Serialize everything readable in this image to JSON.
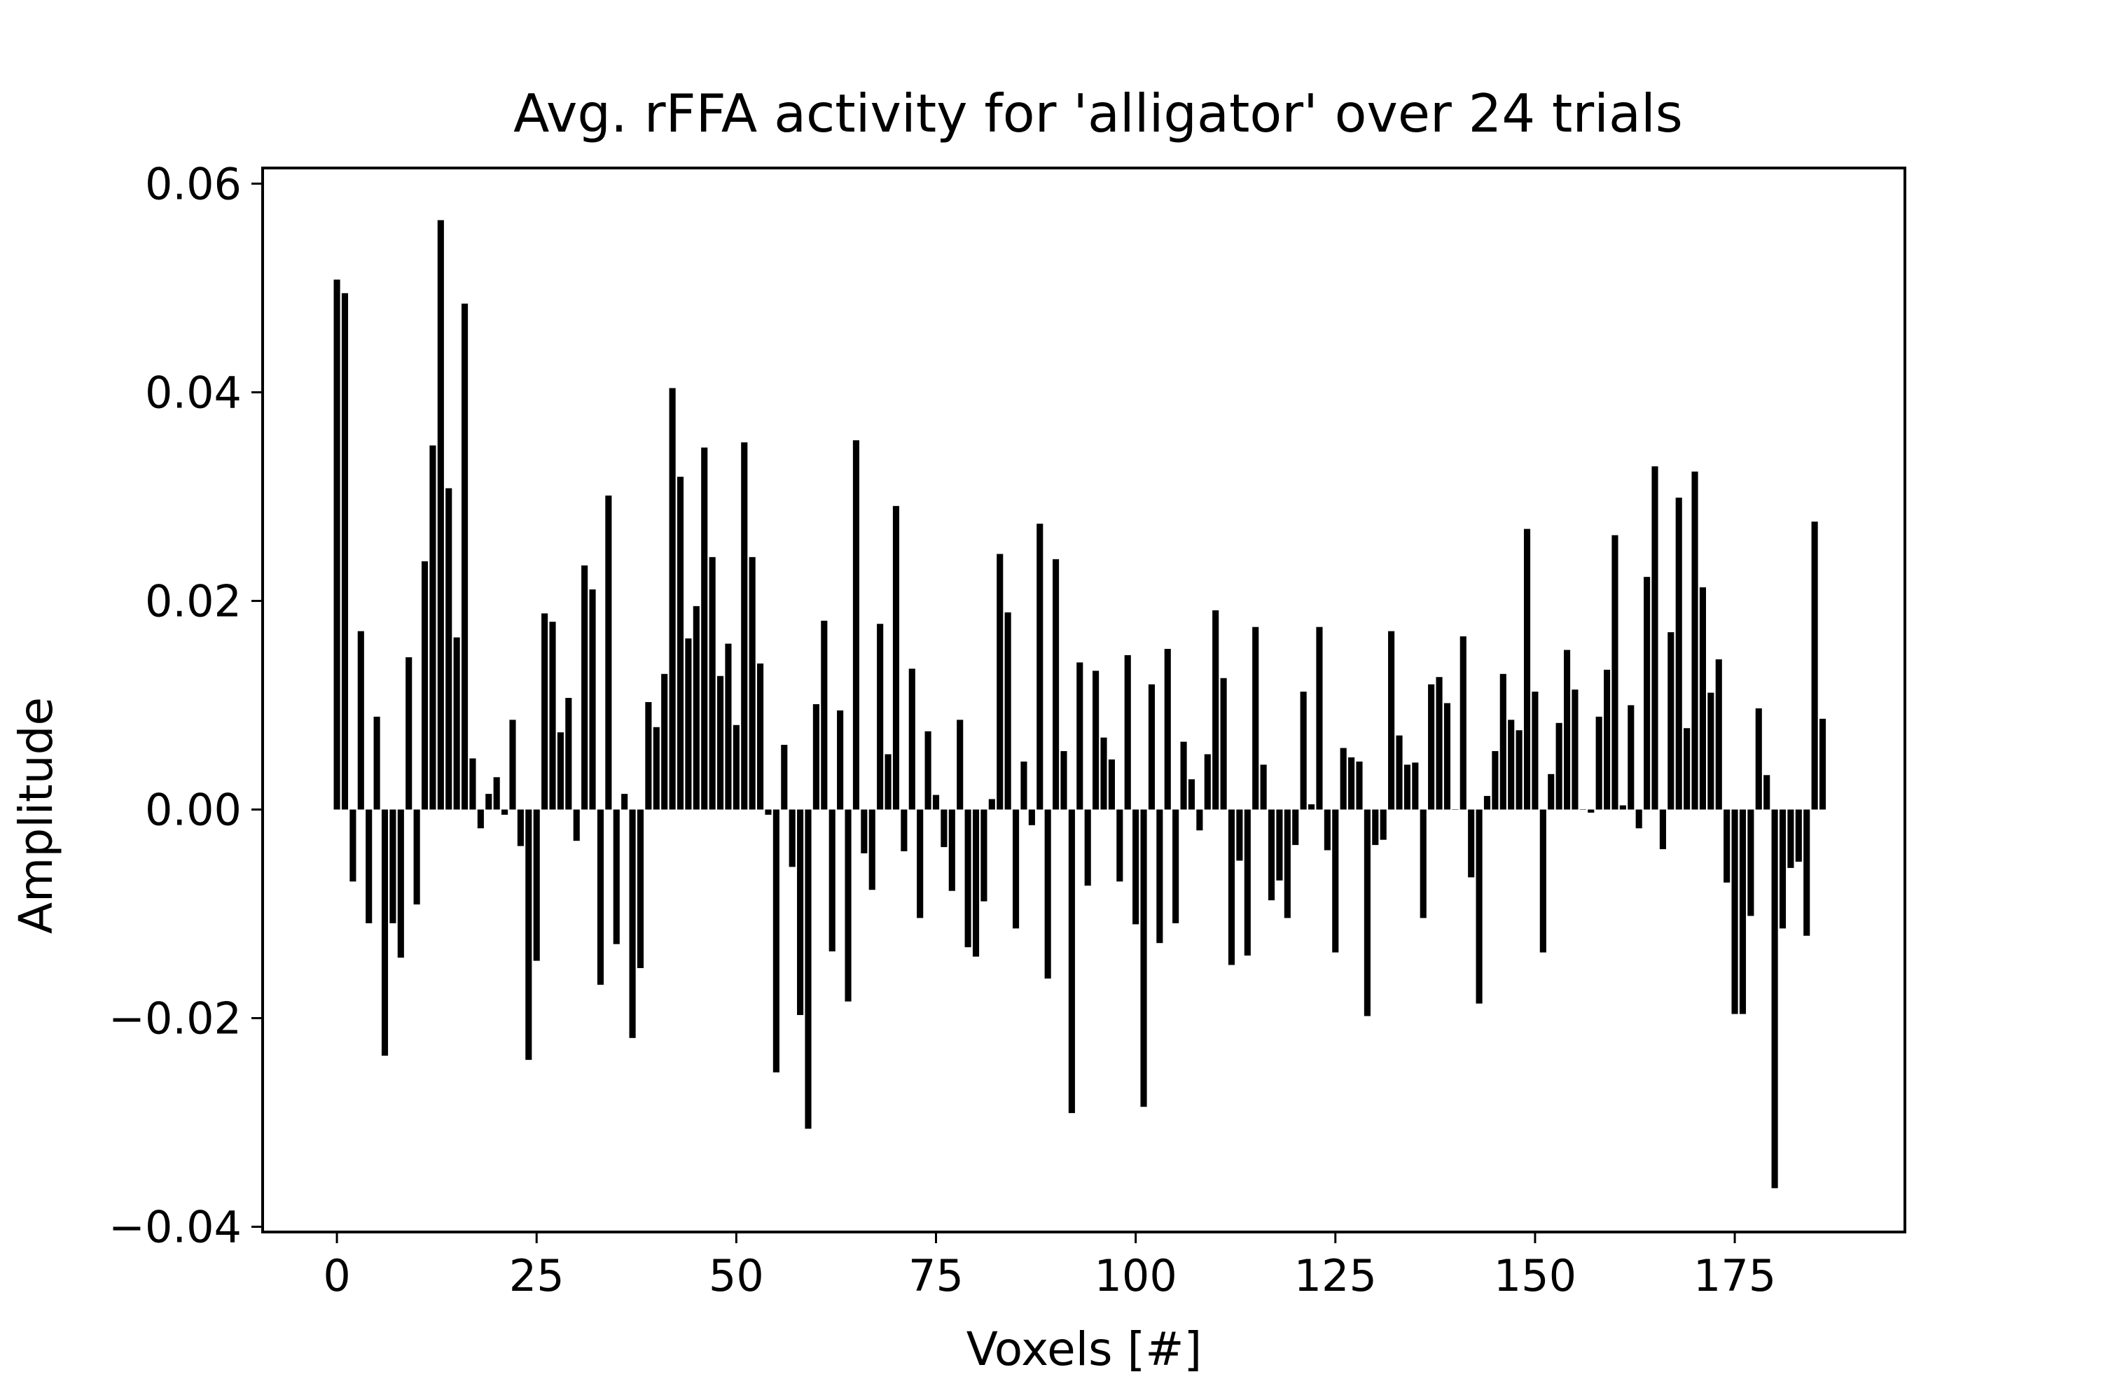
{
  "chart_data": {
    "type": "bar",
    "title": "Avg. rFFA activity for 'alligator' over 24 trials",
    "xlabel": "Voxels [#]",
    "ylabel": "Amplitude",
    "xlim": [
      -9.3,
      196.3
    ],
    "ylim": [
      -0.0405,
      0.0615
    ],
    "xticks": [
      0,
      25,
      50,
      75,
      100,
      125,
      150,
      175
    ],
    "xtick_labels": [
      "0",
      "25",
      "50",
      "75",
      "100",
      "125",
      "150",
      "175"
    ],
    "yticks": [
      -0.04,
      -0.02,
      0.0,
      0.02,
      0.04,
      0.06
    ],
    "ytick_labels": [
      "−0.04",
      "−0.02",
      "0.00",
      "0.02",
      "0.04",
      "0.06"
    ],
    "grid": false,
    "legend": null,
    "bar_color": "#000000",
    "series": [
      {
        "values": [
          0.0508,
          0.0495,
          -0.0069,
          0.0171,
          -0.0109,
          0.0089,
          -0.0236,
          -0.0109,
          -0.0142,
          0.0146,
          -0.0091,
          0.0238,
          0.0349,
          0.0565,
          0.0308,
          0.0165,
          0.0485,
          0.0049,
          -0.0018,
          0.0015,
          0.0031,
          -0.0005,
          0.0086,
          -0.0035,
          -0.024,
          -0.0145,
          0.0188,
          0.018,
          0.0074,
          0.0107,
          -0.003,
          0.0234,
          0.0211,
          -0.0168,
          0.0301,
          -0.0129,
          0.0015,
          -0.0219,
          -0.0152,
          0.0103,
          0.0079,
          0.013,
          0.0404,
          0.0319,
          0.0164,
          0.0195,
          0.0347,
          0.0242,
          0.0128,
          0.0159,
          0.0081,
          0.0352,
          0.0242,
          0.014,
          -0.0005,
          -0.0252,
          0.0062,
          -0.0055,
          -0.0197,
          -0.0306,
          0.0101,
          0.0181,
          -0.0136,
          0.0095,
          -0.0184,
          0.0354,
          -0.0042,
          -0.0077,
          0.0178,
          0.0053,
          0.0291,
          -0.004,
          0.0135,
          -0.0104,
          0.0075,
          0.0014,
          -0.0036,
          -0.0078,
          0.0086,
          -0.0132,
          -0.0141,
          -0.0088,
          0.001,
          0.0245,
          0.0189,
          -0.0114,
          0.0046,
          -0.0015,
          0.0274,
          -0.0162,
          0.024,
          0.0056,
          -0.0291,
          0.0141,
          -0.0073,
          0.0133,
          0.0069,
          0.0048,
          -0.0069,
          0.0148,
          -0.011,
          -0.0285,
          0.012,
          -0.0128,
          0.0154,
          -0.0109,
          0.0065,
          0.0029,
          -0.002,
          0.0053,
          0.0191,
          0.0126,
          -0.0149,
          -0.0049,
          -0.014,
          0.0175,
          0.0043,
          -0.0087,
          -0.0068,
          -0.0104,
          -0.0034,
          0.0113,
          0.0005,
          0.0175,
          -0.0039,
          -0.0137,
          0.0059,
          0.005,
          0.0046,
          -0.0198,
          -0.0034,
          -0.0029,
          0.0171,
          0.0071,
          0.0043,
          0.0045,
          -0.0104,
          0.012,
          0.0127,
          0.0102,
          0.0,
          0.0166,
          -0.0065,
          -0.0186,
          0.0013,
          0.0056,
          0.013,
          0.0086,
          0.0076,
          0.0269,
          0.0113,
          -0.0137,
          0.0034,
          0.0083,
          0.0153,
          0.0115,
          0.0,
          -0.0003,
          0.0089,
          0.0134,
          0.0263,
          0.0004,
          0.01,
          -0.0018,
          0.0223,
          0.0329,
          -0.0038,
          0.017,
          0.0299,
          0.0078,
          0.0324,
          0.0213,
          0.0112,
          0.0144,
          -0.007,
          -0.0196,
          -0.0196,
          -0.0102,
          0.0097,
          0.0033,
          -0.0363,
          -0.0114,
          -0.0056,
          -0.005,
          -0.0121,
          0.0276,
          0.0087
        ]
      }
    ]
  }
}
